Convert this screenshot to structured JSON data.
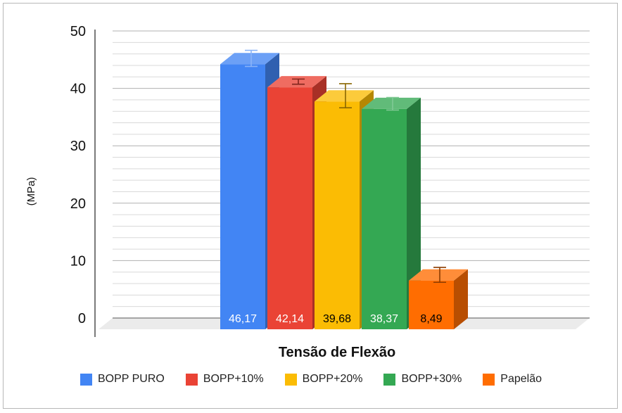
{
  "chart_data": {
    "type": "bar",
    "title": "",
    "xlabel": "Tensão de Flexão",
    "ylabel": "(MPa)",
    "ylim": [
      0,
      50
    ],
    "yticks": [
      0,
      10,
      20,
      30,
      40,
      50
    ],
    "grid": true,
    "legend_position": "bottom",
    "series": [
      {
        "name": "BOPP PURO",
        "value": 46.17,
        "label": "46,17",
        "error": [
          44.8,
          47.6
        ],
        "color": "#4285f4",
        "label_color": "#ffffff"
      },
      {
        "name": "BOPP+10%",
        "value": 42.14,
        "label": "42,14",
        "error": [
          41.7,
          42.6
        ],
        "color": "#ea4335",
        "label_color": "#ffffff"
      },
      {
        "name": "BOPP+20%",
        "value": 39.68,
        "label": "39,68",
        "error": [
          37.6,
          41.8
        ],
        "color": "#fbbc04",
        "label_color": "#000000"
      },
      {
        "name": "BOPP+30%",
        "value": 38.37,
        "label": "38,37",
        "error": [
          37.2,
          39.4
        ],
        "color": "#34a853",
        "label_color": "#ffffff"
      },
      {
        "name": "Papelão",
        "value": 8.49,
        "label": "8,49",
        "error": [
          7.2,
          9.8
        ],
        "color": "#ff6d01",
        "label_color": "#000000"
      }
    ]
  }
}
